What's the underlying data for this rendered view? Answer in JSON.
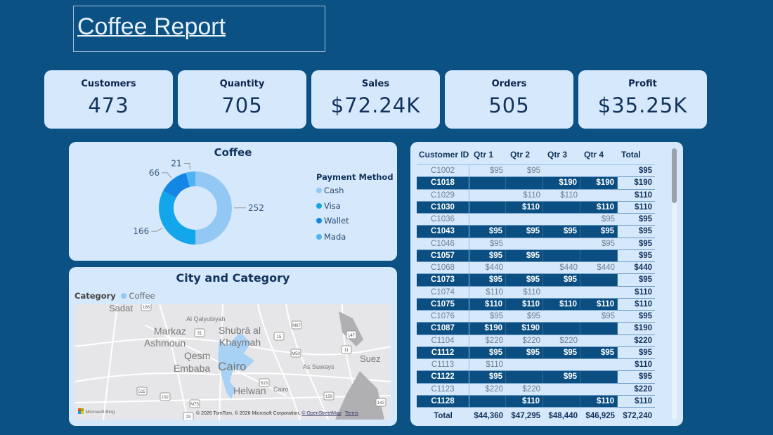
{
  "title": "Coffee Report",
  "kpis": [
    {
      "label": "Customers",
      "value": "473"
    },
    {
      "label": "Quantity",
      "value": "705"
    },
    {
      "label": "Sales",
      "value": "$72.24K"
    },
    {
      "label": "Orders",
      "value": "505"
    },
    {
      "label": "Profit",
      "value": "$35.25K"
    }
  ],
  "donut": {
    "title": "Coffee",
    "legend_title": "Payment Method",
    "chart_data": {
      "type": "pie",
      "categories": [
        "Cash",
        "Visa",
        "Wallet",
        "Mada"
      ],
      "values": [
        252,
        166,
        66,
        21
      ],
      "colors": [
        "#93c8f4",
        "#14a6eb",
        "#1487e6",
        "#4db3f2"
      ]
    }
  },
  "map": {
    "title": "City and Category",
    "legend_label": "Category",
    "legend_item": "Coffee",
    "legend_color": "#93c8f4",
    "places": [
      "Sadat",
      "Al Qalyubiyah",
      "Markaz",
      "Ashmoun",
      "Shubrā al",
      "Khaymah",
      "Qesm",
      "Embaba",
      "Cairo",
      "Helwan",
      "As Suways",
      "Cairo",
      "Suez"
    ],
    "shields": [
      "166",
      "31",
      "15",
      "M67",
      "147",
      "11",
      "M50",
      "515",
      "515",
      "192",
      "M75",
      "159",
      "142",
      "29"
    ],
    "attribution": "© 2026 TomTom, © 2026 Microsoft Corporation, ",
    "osm_link": "© OpenStreetMap",
    "terms_link": "Terms",
    "bing": "Microsoft Bing"
  },
  "table": {
    "headers": [
      "Customer ID",
      "Qtr 1",
      "Qtr 2",
      "Qtr 3",
      "Qtr 4",
      "Total"
    ],
    "rows": [
      {
        "id": "C1002",
        "q": [
          "$95",
          "$95",
          "",
          ""
        ],
        "total": "$95",
        "highlight": false
      },
      {
        "id": "C1018",
        "q": [
          "",
          "",
          "$190",
          "$190"
        ],
        "total": "$190",
        "highlight": true
      },
      {
        "id": "C1029",
        "q": [
          "",
          "$110",
          "$110",
          ""
        ],
        "total": "$110",
        "highlight": false
      },
      {
        "id": "C1030",
        "q": [
          "",
          "$110",
          "",
          "$110"
        ],
        "total": "$110",
        "highlight": true
      },
      {
        "id": "C1036",
        "q": [
          "",
          "",
          "",
          "$95"
        ],
        "total": "$95",
        "highlight": false
      },
      {
        "id": "C1043",
        "q": [
          "$95",
          "$95",
          "$95",
          "$95"
        ],
        "total": "$95",
        "highlight": true
      },
      {
        "id": "C1046",
        "q": [
          "$95",
          "",
          "",
          "$95"
        ],
        "total": "$95",
        "highlight": false
      },
      {
        "id": "C1057",
        "q": [
          "$95",
          "$95",
          "",
          ""
        ],
        "total": "$95",
        "highlight": true
      },
      {
        "id": "C1068",
        "q": [
          "$440",
          "",
          "$440",
          "$440"
        ],
        "total": "$440",
        "highlight": false
      },
      {
        "id": "C1073",
        "q": [
          "$95",
          "$95",
          "$95",
          ""
        ],
        "total": "$95",
        "highlight": true
      },
      {
        "id": "C1074",
        "q": [
          "$110",
          "$110",
          "",
          ""
        ],
        "total": "$110",
        "highlight": false
      },
      {
        "id": "C1075",
        "q": [
          "$110",
          "$110",
          "$110",
          "$110"
        ],
        "total": "$110",
        "highlight": true
      },
      {
        "id": "C1076",
        "q": [
          "$95",
          "$95",
          "",
          "$95"
        ],
        "total": "$95",
        "highlight": false
      },
      {
        "id": "C1087",
        "q": [
          "$190",
          "$190",
          "",
          ""
        ],
        "total": "$190",
        "highlight": true
      },
      {
        "id": "C1104",
        "q": [
          "$220",
          "$220",
          "$220",
          ""
        ],
        "total": "$220",
        "highlight": false
      },
      {
        "id": "C1112",
        "q": [
          "$95",
          "$95",
          "$95",
          "$95"
        ],
        "total": "$95",
        "highlight": true
      },
      {
        "id": "C1113",
        "q": [
          "$110",
          "",
          "",
          ""
        ],
        "total": "$110",
        "highlight": false
      },
      {
        "id": "C1122",
        "q": [
          "$95",
          "",
          "$95",
          ""
        ],
        "total": "$95",
        "highlight": true
      },
      {
        "id": "C1123",
        "q": [
          "$220",
          "$220",
          "",
          ""
        ],
        "total": "$220",
        "highlight": false
      },
      {
        "id": "C1128",
        "q": [
          "",
          "$110",
          "",
          "$110"
        ],
        "total": "$110",
        "highlight": true
      }
    ],
    "totals": {
      "label": "Total",
      "q": [
        "$44,360",
        "$47,295",
        "$48,440",
        "$46,925"
      ],
      "total": "$72,240"
    }
  }
}
